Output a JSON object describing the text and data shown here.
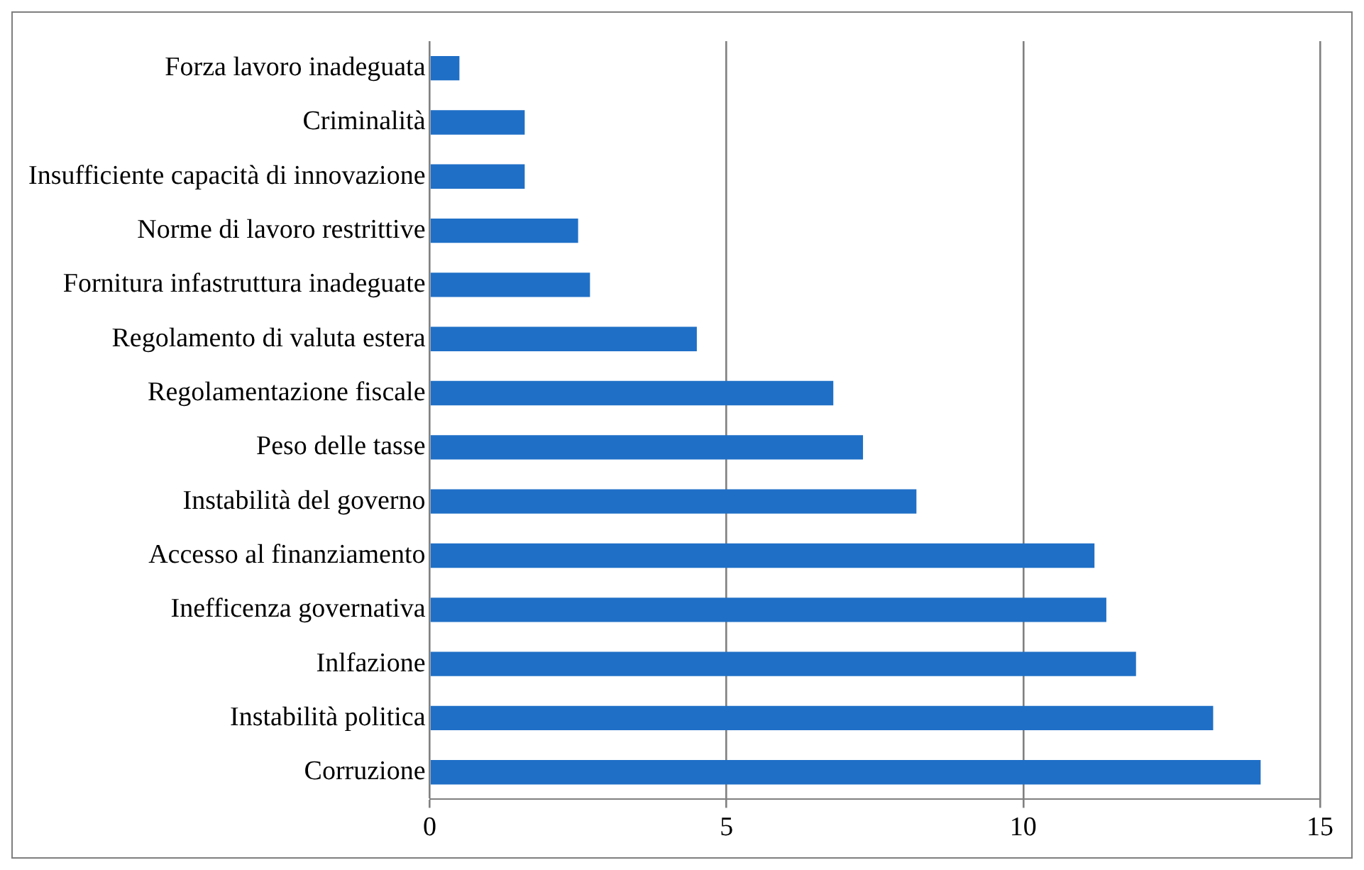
{
  "chart_data": {
    "type": "bar",
    "orientation": "horizontal",
    "categories": [
      "Forza lavoro inadeguata",
      "Criminalità",
      "Insufficiente capacità di innovazione",
      "Norme di lavoro restrittive",
      "Fornitura infastruttura inadeguate",
      "Regolamento di valuta estera",
      "Regolamentazione fiscale",
      "Peso delle tasse",
      "Instabilità del governo",
      "Accesso al finanziamento",
      "Inefficenza governativa",
      "Inlfazione",
      "Instabilità politica",
      "Corruzione"
    ],
    "values": [
      0.5,
      1.6,
      1.6,
      2.5,
      2.7,
      4.5,
      6.8,
      7.3,
      8.2,
      11.2,
      11.4,
      11.9,
      13.2,
      14.0
    ],
    "color": "#1f6fc6",
    "xlim": [
      0,
      15
    ],
    "xticks": [
      0,
      5,
      10,
      15
    ],
    "grid": "x",
    "legend": false
  }
}
